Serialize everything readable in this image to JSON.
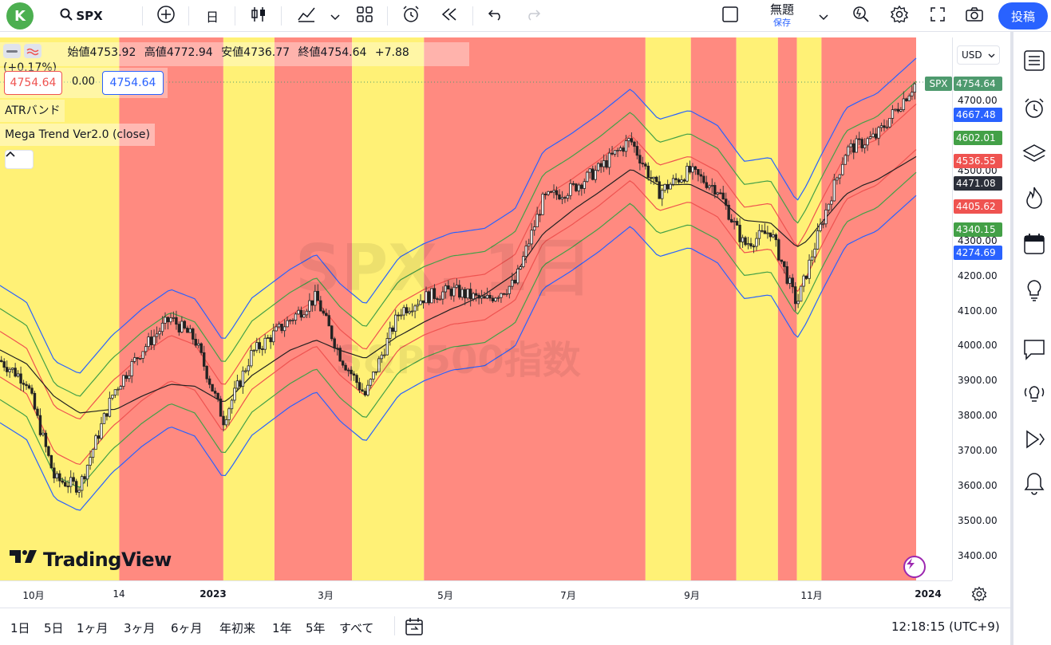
{
  "toolbar": {
    "avatar_letter": "K",
    "symbol": "SPX",
    "interval": "日",
    "title": "無題",
    "save_label": "保存",
    "post_label": "投稿"
  },
  "legend": {
    "open_label": "始値",
    "open": "4753.92",
    "high_label": "高値",
    "high": "4772.94",
    "low_label": "安値",
    "low": "4736.77",
    "close_label": "終値",
    "close": "4754.64",
    "change": "+7.88 (+0.17%)",
    "sell_value": "4754.64",
    "spread": "0.00",
    "buy_value": "4754.64",
    "indicator1": "ATRバンド",
    "indicator2": "Mega Trend Ver2.0 (close)"
  },
  "watermark": {
    "symbol": "SPX, 1日",
    "name": "S&P500指数"
  },
  "brand": "TradingView",
  "price_scale": {
    "currency": "USD",
    "ticks": [
      "4700.00",
      "4600.00",
      "4500.00",
      "4400.00",
      "4300.00",
      "4200.00",
      "4100.00",
      "4000.00",
      "3900.00",
      "3800.00",
      "3700.00",
      "3600.00",
      "3500.00",
      "3400.00"
    ],
    "labels": [
      {
        "text": "4754.64",
        "color": "#4e9a6e",
        "tag": "SPX"
      },
      {
        "text": "4667.48",
        "color": "#2962ff"
      },
      {
        "text": "4602.01",
        "color": "#43a047"
      },
      {
        "text": "4536.55",
        "color": "#ef5350"
      },
      {
        "text": "4471.08",
        "color": "#2a2e39"
      },
      {
        "text": "4405.62",
        "color": "#ef5350"
      },
      {
        "text": "4340.15",
        "color": "#43a047"
      },
      {
        "text": "4274.69",
        "color": "#2962ff"
      }
    ]
  },
  "time_axis": [
    "10月",
    "14",
    "2023",
    "3月",
    "5月",
    "7月",
    "9月",
    "11月",
    "2024"
  ],
  "ranges": [
    "1日",
    "5日",
    "1ヶ月",
    "3ヶ月",
    "6ヶ月",
    "年初来",
    "1年",
    "5年",
    "すべて"
  ],
  "clock": "12:18:15 (UTC+9)",
  "colors": {
    "up_zone": "#fff176",
    "down_zone": "#ff8a80",
    "band_outer": "#2962ff",
    "band_mid": "#43a047",
    "band_inner": "#ef5350",
    "center": "#212121"
  },
  "chart_data": {
    "type": "candlestick",
    "symbol": "SPX",
    "x_range": [
      "2022-09-01",
      "2023-12-29"
    ],
    "y_range": [
      3350,
      4800
    ],
    "zones": [
      {
        "from": "2022-09-01",
        "to": "2022-11-03",
        "trend": "up"
      },
      {
        "from": "2022-11-03",
        "to": "2022-12-28",
        "trend": "down"
      },
      {
        "from": "2022-12-28",
        "to": "2023-01-24",
        "trend": "up"
      },
      {
        "from": "2023-01-24",
        "to": "2023-03-06",
        "trend": "down"
      },
      {
        "from": "2023-03-06",
        "to": "2023-04-13",
        "trend": "up"
      },
      {
        "from": "2023-04-13",
        "to": "2023-08-08",
        "trend": "down"
      },
      {
        "from": "2023-08-08",
        "to": "2023-09-01",
        "trend": "up"
      },
      {
        "from": "2023-09-01",
        "to": "2023-09-25",
        "trend": "down"
      },
      {
        "from": "2023-09-25",
        "to": "2023-10-17",
        "trend": "up"
      },
      {
        "from": "2023-10-17",
        "to": "2023-10-27",
        "trend": "down"
      },
      {
        "from": "2023-10-27",
        "to": "2023-11-09",
        "trend": "up"
      },
      {
        "from": "2023-11-09",
        "to": "2023-12-29",
        "trend": "down"
      }
    ],
    "center_line": [
      [
        "2022-09-01",
        4000
      ],
      [
        "2022-10-01",
        3930
      ],
      [
        "2022-11-01",
        3800
      ],
      [
        "2022-12-01",
        3830
      ],
      [
        "2023-01-01",
        3860
      ],
      [
        "2023-02-01",
        3960
      ],
      [
        "2023-03-01",
        3995
      ],
      [
        "2023-04-01",
        4010
      ],
      [
        "2023-05-01",
        4100
      ],
      [
        "2023-06-01",
        4220
      ],
      [
        "2023-07-01",
        4370
      ],
      [
        "2023-08-01",
        4480
      ],
      [
        "2023-09-01",
        4450
      ],
      [
        "2023-10-01",
        4380
      ],
      [
        "2023-11-01",
        4330
      ],
      [
        "2023-12-01",
        4420
      ],
      [
        "2023-12-29",
        4471
      ]
    ],
    "band_offsets": {
      "inner": 65,
      "mid": 130,
      "outer": 196
    },
    "closes": [
      [
        "2022-09-01",
        3960
      ],
      [
        "2022-09-15",
        3900
      ],
      [
        "2022-09-30",
        3620
      ],
      [
        "2022-10-13",
        3600
      ],
      [
        "2022-10-31",
        3870
      ],
      [
        "2022-11-15",
        3990
      ],
      [
        "2022-11-30",
        4080
      ],
      [
        "2022-12-13",
        4020
      ],
      [
        "2022-12-28",
        3790
      ],
      [
        "2023-01-12",
        3980
      ],
      [
        "2023-01-31",
        4070
      ],
      [
        "2023-02-15",
        4140
      ],
      [
        "2023-02-28",
        3970
      ],
      [
        "2023-03-13",
        3860
      ],
      [
        "2023-03-31",
        4100
      ],
      [
        "2023-04-13",
        4140
      ],
      [
        "2023-04-28",
        4160
      ],
      [
        "2023-05-15",
        4130
      ],
      [
        "2023-05-31",
        4180
      ],
      [
        "2023-06-15",
        4420
      ],
      [
        "2023-06-30",
        4450
      ],
      [
        "2023-07-14",
        4505
      ],
      [
        "2023-07-31",
        4590
      ],
      [
        "2023-08-15",
        4440
      ],
      [
        "2023-08-31",
        4500
      ],
      [
        "2023-09-15",
        4450
      ],
      [
        "2023-09-29",
        4290
      ],
      [
        "2023-10-13",
        4330
      ],
      [
        "2023-10-27",
        4120
      ],
      [
        "2023-11-09",
        4350
      ],
      [
        "2023-11-22",
        4560
      ],
      [
        "2023-12-08",
        4600
      ],
      [
        "2023-12-29",
        4754.64
      ]
    ]
  }
}
